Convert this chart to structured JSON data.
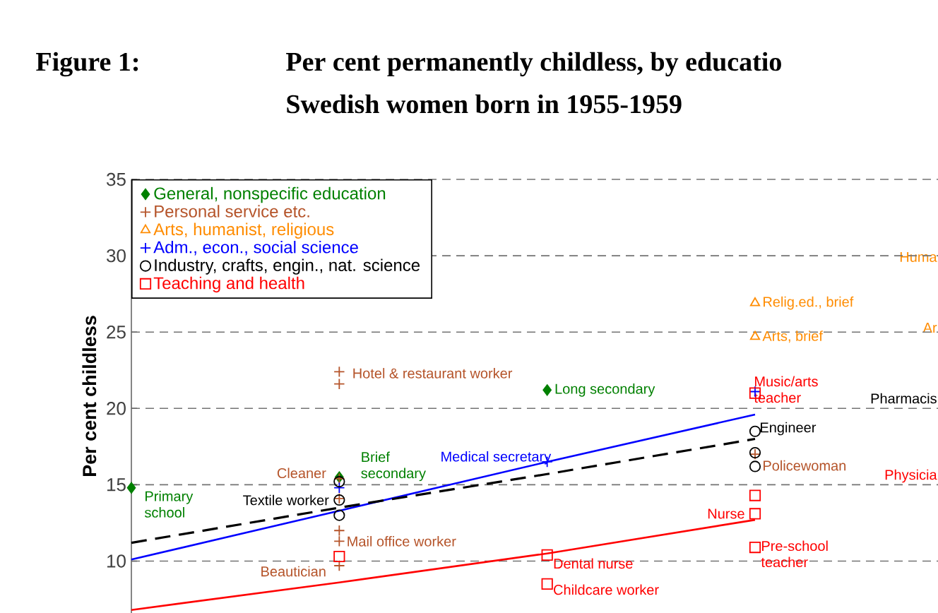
{
  "chart_data": {
    "type": "scatter",
    "title": "Per cent permanently childless, by educatio",
    "subtitle": "Swedish women born in 1955-1959",
    "ylabel": "Per cent childless",
    "categories": [
      null,
      null,
      null,
      null
    ],
    "ylim": [
      6.6,
      35
    ],
    "yticks": [
      10,
      15,
      20,
      25,
      30,
      35
    ],
    "grid": "y",
    "legend": "top left",
    "series": [
      {
        "name": "General, nonspecific education",
        "color": "#008000",
        "marker": "diamond",
        "values": [
          14.8,
          15.5,
          21.2,
          null
        ],
        "value_labels": [
          "Primary school",
          "Brief secondary",
          "Long secondary",
          null
        ]
      },
      {
        "name": "Personal service etc.",
        "color": "#b5542a",
        "marker": "cross",
        "values": [
          null,
          22.4,
          null,
          17.0
        ],
        "value_labels": [
          null,
          "Hotel & restaurant worker",
          null,
          "Policewoman"
        ]
      },
      {
        "color": "#b5542a",
        "marker": "cross",
        "values": [
          null,
          21.6,
          null,
          null
        ]
      },
      {
        "color": "#b5542a",
        "marker": "cross",
        "values": [
          null,
          15.4,
          null,
          null
        ],
        "value_labels": [
          null,
          "Cleaner",
          null,
          null
        ]
      },
      {
        "color": "#b5542a",
        "marker": "cross",
        "values": [
          null,
          14.1,
          null,
          null
        ]
      },
      {
        "color": "#b5542a",
        "marker": "cross",
        "values": [
          null,
          12.0,
          null,
          null
        ]
      },
      {
        "color": "#b5542a",
        "marker": "cross",
        "values": [
          null,
          11.3,
          null,
          null
        ],
        "value_labels": [
          null,
          "Mail office worker",
          null,
          null
        ]
      },
      {
        "color": "#b5542a",
        "marker": "cross",
        "values": [
          null,
          9.7,
          null,
          null
        ],
        "value_labels": [
          null,
          "Beautician",
          null,
          null
        ]
      },
      {
        "name": "Arts, humanist, religious",
        "color": "#ff8c00",
        "marker": "triangle",
        "values": [
          null,
          null,
          null,
          26.9
        ],
        "value_labels": [
          null,
          null,
          null,
          "Relig.ed., brief"
        ]
      },
      {
        "color": "#ff8c00",
        "marker": "triangle",
        "values": [
          null,
          null,
          null,
          24.7
        ],
        "value_labels": [
          null,
          null,
          null,
          "Arts, brief"
        ]
      },
      {
        "name": "Adm., econ., social science",
        "color": "#0000ff",
        "marker": "cross",
        "values": [
          null,
          14.8,
          16.5,
          21.1
        ],
        "value_labels": [
          null,
          null,
          "Medical secretary",
          null
        ]
      },
      {
        "name": "Industry, crafts, engin., nat. science",
        "color": "#000000",
        "marker": "circle",
        "values": [
          null,
          15.2,
          null,
          18.5
        ],
        "value_labels": [
          null,
          null,
          null,
          "Engineer"
        ]
      },
      {
        "color": "#000000",
        "marker": "circle",
        "values": [
          null,
          14.0,
          null,
          17.1
        ],
        "value_labels": [
          null,
          "Textile worker",
          null,
          null
        ]
      },
      {
        "color": "#000000",
        "marker": "circle",
        "values": [
          null,
          13.0,
          null,
          16.2
        ]
      },
      {
        "name": "Teaching and health",
        "color": "#ff0000",
        "marker": "square",
        "values": [
          null,
          10.3,
          10.4,
          21.0
        ],
        "value_labels": [
          null,
          null,
          "Dental nurse",
          "Music/arts teacher"
        ]
      },
      {
        "color": "#ff0000",
        "marker": "square",
        "values": [
          null,
          null,
          8.5,
          14.3
        ],
        "value_labels": [
          null,
          null,
          "Childcare worker",
          null
        ]
      },
      {
        "color": "#ff0000",
        "marker": "square",
        "values": [
          null,
          null,
          null,
          13.1
        ],
        "value_labels": [
          null,
          null,
          null,
          "Nurse"
        ]
      },
      {
        "color": "#ff0000",
        "marker": "square",
        "values": [
          null,
          null,
          null,
          10.9
        ],
        "value_labels": [
          null,
          null,
          null,
          "Pre-school teacher"
        ]
      },
      {
        "type": "line",
        "color": "#0000ff",
        "line_style": "solid",
        "values": [
          10.1,
          13.3,
          16.5,
          19.6
        ]
      },
      {
        "type": "line",
        "color": "#000000",
        "line_style": "dashed",
        "values": [
          11.2,
          13.5,
          15.7,
          18.0
        ]
      },
      {
        "type": "line",
        "color": "#ff0000",
        "line_style": "solid",
        "values": [
          6.8,
          8.6,
          10.5,
          12.7
        ]
      }
    ],
    "annotations": [
      "Figure 1:",
      "Huma",
      "Ar",
      "Pharmacis",
      "Physicia"
    ]
  }
}
